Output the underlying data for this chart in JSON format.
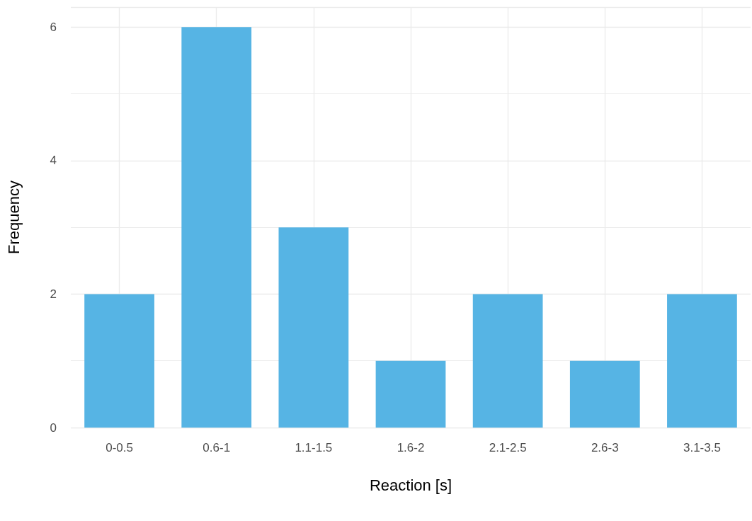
{
  "chart_data": {
    "type": "bar",
    "xlabel": "Reaction [s]",
    "ylabel": "Frequency",
    "categories": [
      "0-0.5",
      "0.6-1",
      "1.1-1.5",
      "1.6-2",
      "2.1-2.5",
      "2.6-3",
      "3.1-3.5"
    ],
    "values": [
      2,
      6,
      3,
      1,
      2,
      1,
      2
    ],
    "color": "#56b4e4",
    "ylim": [
      0,
      6.3
    ],
    "yticks": [
      0,
      2,
      4,
      6
    ],
    "grid": true
  }
}
